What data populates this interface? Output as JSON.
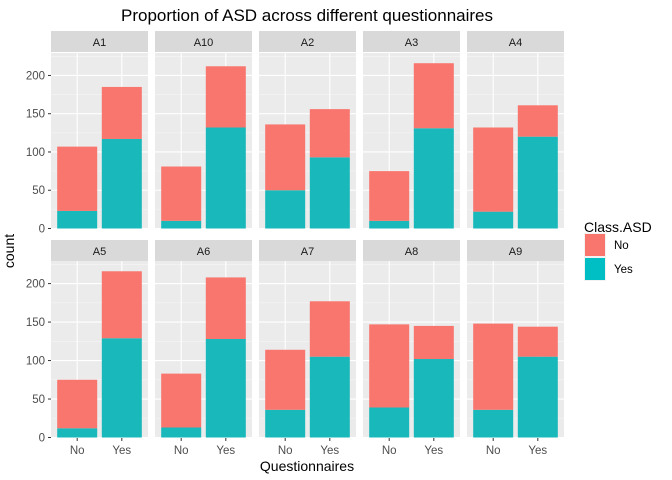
{
  "chart_data": {
    "type": "bar",
    "stacked": true,
    "title": "Proportion of ASD across different questionnaires",
    "xlabel": "Questionnaires",
    "ylabel": "count",
    "categories": [
      "No",
      "Yes"
    ],
    "ylim": [
      0,
      230
    ],
    "yticks": [
      0,
      50,
      100,
      150,
      200
    ],
    "legend": {
      "title": "Class.ASD",
      "placement": "right",
      "entries": [
        {
          "label": "No",
          "color": "#F8766D"
        },
        {
          "label": "Yes",
          "color": "#00BFC4"
        }
      ]
    },
    "colors": {
      "No": "#F8766D",
      "Yes": "#19B8BB"
    },
    "facets": [
      {
        "label": "A1",
        "bars": [
          {
            "category": "No",
            "no": 84,
            "yes": 23
          },
          {
            "category": "Yes",
            "no": 68,
            "yes": 117
          }
        ]
      },
      {
        "label": "A10",
        "bars": [
          {
            "category": "No",
            "no": 71,
            "yes": 10
          },
          {
            "category": "Yes",
            "no": 80,
            "yes": 132
          }
        ]
      },
      {
        "label": "A2",
        "bars": [
          {
            "category": "No",
            "no": 86,
            "yes": 50
          },
          {
            "category": "Yes",
            "no": 63,
            "yes": 93
          }
        ]
      },
      {
        "label": "A3",
        "bars": [
          {
            "category": "No",
            "no": 65,
            "yes": 10
          },
          {
            "category": "Yes",
            "no": 85,
            "yes": 131
          }
        ]
      },
      {
        "label": "A4",
        "bars": [
          {
            "category": "No",
            "no": 110,
            "yes": 22
          },
          {
            "category": "Yes",
            "no": 41,
            "yes": 120
          }
        ]
      },
      {
        "label": "A5",
        "bars": [
          {
            "category": "No",
            "no": 63,
            "yes": 12
          },
          {
            "category": "Yes",
            "no": 87,
            "yes": 129
          }
        ]
      },
      {
        "label": "A6",
        "bars": [
          {
            "category": "No",
            "no": 70,
            "yes": 13
          },
          {
            "category": "Yes",
            "no": 80,
            "yes": 128
          }
        ]
      },
      {
        "label": "A7",
        "bars": [
          {
            "category": "No",
            "no": 78,
            "yes": 36
          },
          {
            "category": "Yes",
            "no": 72,
            "yes": 105
          }
        ]
      },
      {
        "label": "A8",
        "bars": [
          {
            "category": "No",
            "no": 108,
            "yes": 39
          },
          {
            "category": "Yes",
            "no": 43,
            "yes": 102
          }
        ]
      },
      {
        "label": "A9",
        "bars": [
          {
            "category": "No",
            "no": 112,
            "yes": 36
          },
          {
            "category": "Yes",
            "no": 39,
            "yes": 105
          }
        ]
      }
    ]
  }
}
